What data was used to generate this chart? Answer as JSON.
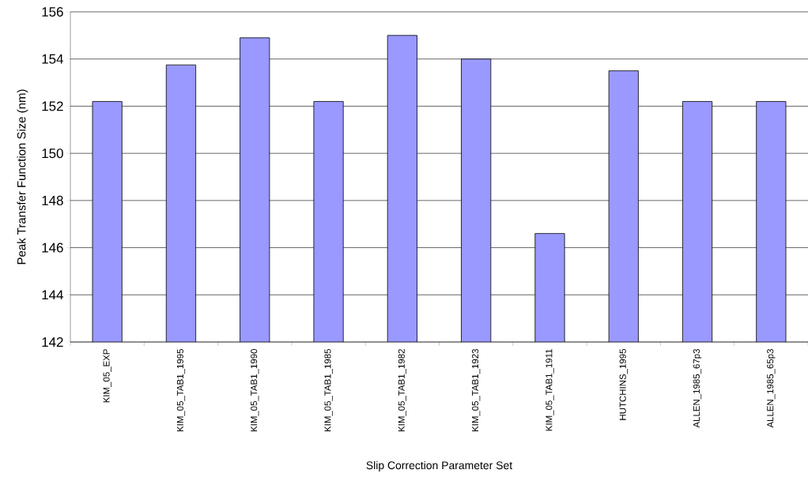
{
  "chart_data": {
    "type": "bar",
    "xlabel": "Slip Correction Parameter Set",
    "ylabel": "Peak Transfer Function Size  (nm)",
    "categories": [
      "KIM_05_EXP",
      "KIM_05_TAB1_1995",
      "KIM_05_TAB1_1990",
      "KIM_05_TAB1_1985",
      "KIM_05_TAB1_1982",
      "KIM_05_TAB1_1923",
      "KIM_05_TAB1_1911",
      "HUTCHINS_1995",
      "ALLEN_1985_67p3",
      "ALLEN_1985_65p3"
    ],
    "values": [
      152.2,
      153.75,
      154.9,
      152.2,
      155.0,
      154.0,
      146.6,
      153.5,
      152.2,
      152.2
    ],
    "color": "#9999ff",
    "ylim": [
      142,
      156
    ],
    "yticks": [
      142,
      144,
      146,
      148,
      150,
      152,
      154,
      156
    ],
    "grid": "y"
  }
}
